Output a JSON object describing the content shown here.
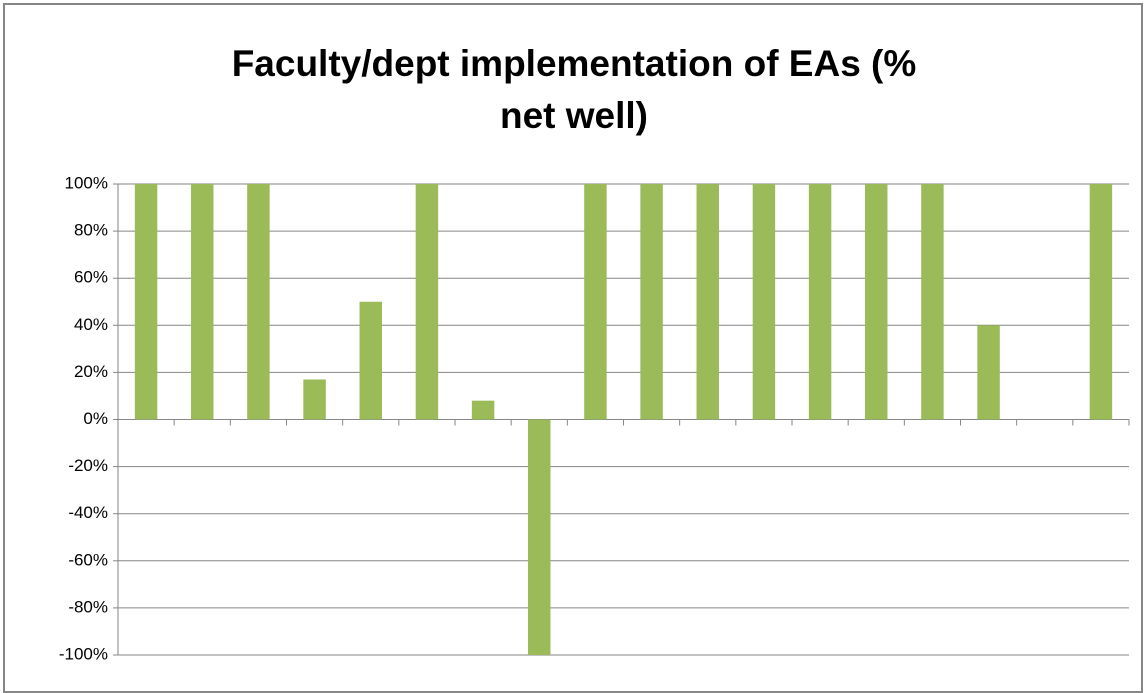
{
  "chart_data": {
    "type": "bar",
    "title": "Faculty/dept implementation of EAs (% net well)",
    "categories": [
      null,
      null,
      null,
      null,
      null,
      null,
      null,
      null,
      null,
      null,
      null,
      null,
      null,
      null,
      null,
      null,
      null,
      null
    ],
    "values": [
      100,
      100,
      100,
      17,
      50,
      100,
      8,
      -100,
      100,
      100,
      100,
      100,
      100,
      100,
      100,
      40,
      0,
      100
    ],
    "color": "#9bbb59",
    "ylim": [
      -100,
      100
    ],
    "yticks": [
      {
        "value": -100,
        "label": "-100%"
      },
      {
        "value": -80,
        "label": "-80%"
      },
      {
        "value": -60,
        "label": "-60%"
      },
      {
        "value": -40,
        "label": "-40%"
      },
      {
        "value": -20,
        "label": "-20%"
      },
      {
        "value": 0,
        "label": "0%"
      },
      {
        "value": 20,
        "label": "20%"
      },
      {
        "value": 40,
        "label": "40%"
      },
      {
        "value": 60,
        "label": "60%"
      },
      {
        "value": 80,
        "label": "80%"
      },
      {
        "value": 100,
        "label": "100%"
      }
    ],
    "grid": true
  }
}
